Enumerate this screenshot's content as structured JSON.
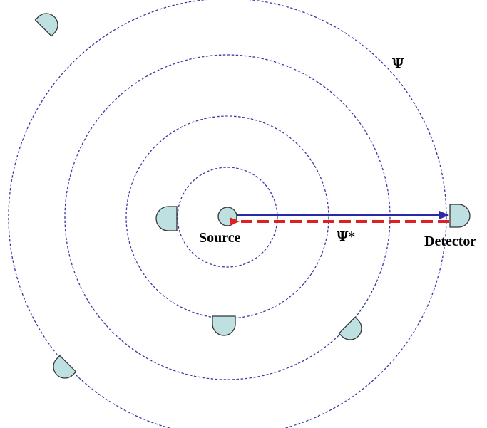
{
  "diagram": {
    "source_label": "Source",
    "detector_label": "Detector",
    "psi_label": "Ψ",
    "psi_star_label": "Ψ*"
  },
  "colors": {
    "background": "#ffffff",
    "wavefront": "#3a3aa8",
    "detector_fill": "#bfe0e0",
    "forward_arrow": "#2a2aa6",
    "backward_arrow": "#e02020"
  },
  "icons": {
    "source": "circle-source-icon",
    "detector": "half-circle-detector-icon"
  }
}
